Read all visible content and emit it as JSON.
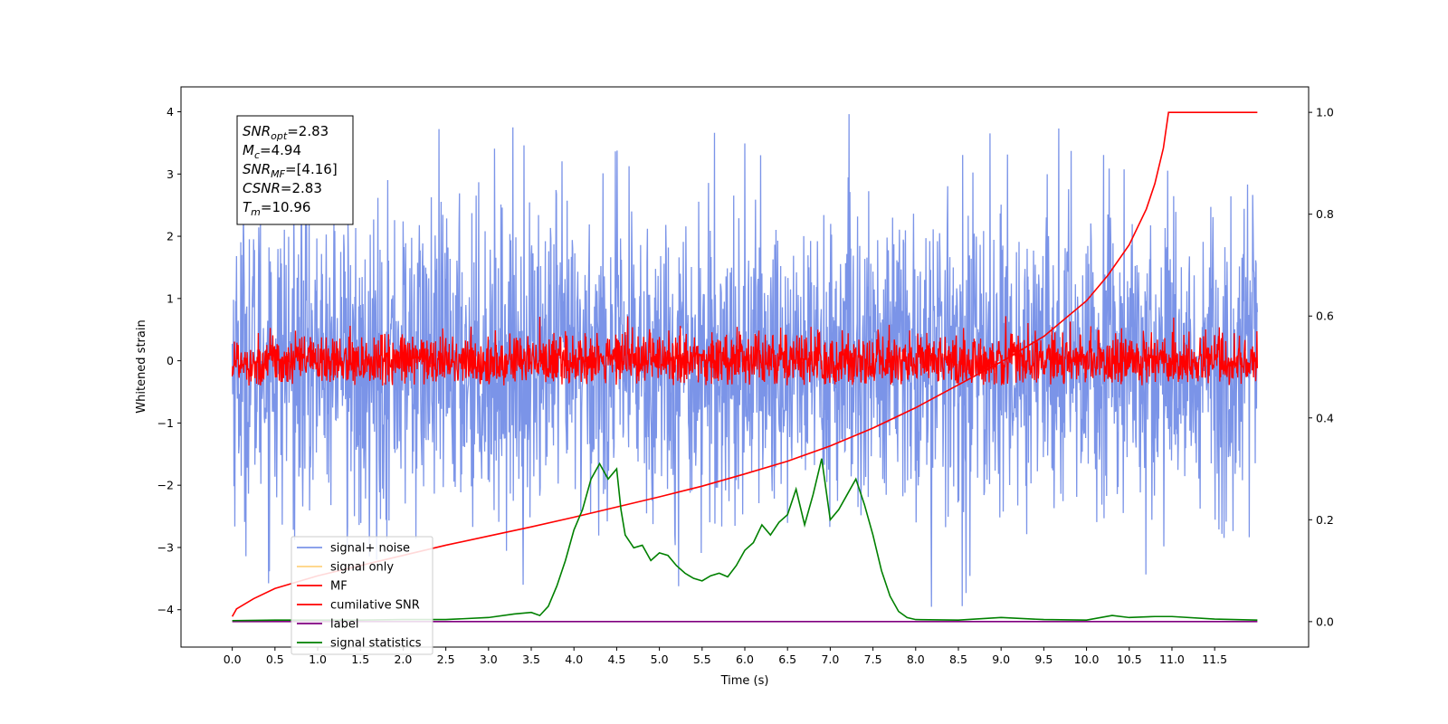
{
  "chart_data": {
    "type": "line",
    "xlabel": "Time (s)",
    "ylabel": "Whitened strain",
    "xlim": [
      -0.6,
      12.6
    ],
    "ylim": [
      -4.6,
      4.4
    ],
    "y2lim": [
      -0.05,
      1.05
    ],
    "x_ticks": [
      0.0,
      0.5,
      1.0,
      1.5,
      2.0,
      2.5,
      3.0,
      3.5,
      4.0,
      4.5,
      5.0,
      5.5,
      6.0,
      6.5,
      7.0,
      7.5,
      8.0,
      8.5,
      9.0,
      9.5,
      10.0,
      10.5,
      11.0,
      11.5
    ],
    "x_tick_labels": [
      "0.0",
      "0.5",
      "1.0",
      "1.5",
      "2.0",
      "2.5",
      "3.0",
      "3.5",
      "4.0",
      "4.5",
      "5.0",
      "5.5",
      "6.0",
      "6.5",
      "7.0",
      "7.5",
      "8.0",
      "8.5",
      "9.0",
      "9.5",
      "10.0",
      "10.5",
      "11.0",
      "11.5"
    ],
    "y_ticks": [
      -4,
      -3,
      -2,
      -1,
      0,
      1,
      2,
      3,
      4
    ],
    "y_tick_labels": [
      "−4",
      "−3",
      "−2",
      "−1",
      "0",
      "1",
      "2",
      "3",
      "4"
    ],
    "y2_ticks": [
      0.0,
      0.2,
      0.4,
      0.6,
      0.8,
      1.0
    ],
    "y2_tick_labels": [
      "0.0",
      "0.2",
      "0.4",
      "0.6",
      "0.8",
      "1.0"
    ],
    "grid": false,
    "legend_position": "bottom-left",
    "series": [
      {
        "name": "signal+ noise",
        "color": "#7b94e8",
        "axis": "left",
        "style": "noise",
        "x_range": [
          0.0,
          12.0
        ],
        "mean": 0.0,
        "amplitude_range": [
          -4.0,
          4.0
        ]
      },
      {
        "name": "signal only",
        "color": "#ffd27f",
        "axis": "left",
        "style": "hidden",
        "x": [],
        "y": []
      },
      {
        "name": "MF",
        "color": "#ff0000",
        "axis": "left",
        "style": "noise",
        "x_range": [
          0.0,
          12.0
        ],
        "mean": 0.0,
        "amplitude_range": [
          -0.4,
          1.0
        ]
      },
      {
        "name": "cumilative SNR",
        "color": "#ff0000",
        "axis": "right",
        "style": "line",
        "x": [
          0.0,
          0.05,
          0.25,
          0.5,
          1.0,
          1.5,
          2.0,
          2.5,
          3.0,
          3.5,
          4.0,
          4.5,
          5.0,
          5.5,
          6.0,
          6.5,
          7.0,
          7.5,
          8.0,
          8.5,
          9.0,
          9.5,
          10.0,
          10.25,
          10.5,
          10.7,
          10.8,
          10.9,
          10.96,
          11.0,
          11.5,
          12.0
        ],
        "y": [
          0.01,
          0.025,
          0.045,
          0.065,
          0.09,
          0.11,
          0.13,
          0.15,
          0.168,
          0.186,
          0.205,
          0.225,
          0.245,
          0.266,
          0.29,
          0.315,
          0.345,
          0.38,
          0.42,
          0.465,
          0.51,
          0.56,
          0.63,
          0.68,
          0.74,
          0.81,
          0.86,
          0.93,
          1.0,
          1.0,
          1.0,
          1.0
        ]
      },
      {
        "name": "label",
        "color": "#800080",
        "axis": "right",
        "style": "line",
        "x": [
          0.0,
          12.0
        ],
        "y": [
          0.0,
          0.0
        ]
      },
      {
        "name": "signal statistics",
        "color": "#008000",
        "axis": "right",
        "style": "line",
        "x": [
          0.0,
          0.5,
          1.0,
          1.5,
          2.0,
          2.5,
          3.0,
          3.3,
          3.5,
          3.6,
          3.7,
          3.8,
          3.9,
          4.0,
          4.1,
          4.2,
          4.3,
          4.4,
          4.5,
          4.55,
          4.6,
          4.7,
          4.8,
          4.9,
          5.0,
          5.1,
          5.2,
          5.3,
          5.4,
          5.5,
          5.6,
          5.7,
          5.8,
          5.9,
          6.0,
          6.1,
          6.2,
          6.3,
          6.4,
          6.5,
          6.6,
          6.7,
          6.8,
          6.9,
          7.0,
          7.1,
          7.2,
          7.3,
          7.4,
          7.5,
          7.6,
          7.7,
          7.8,
          7.9,
          8.0,
          8.5,
          9.0,
          9.5,
          10.0,
          10.3,
          10.5,
          10.8,
          11.0,
          11.5,
          12.0
        ],
        "y": [
          0.002,
          0.003,
          0.003,
          0.003,
          0.004,
          0.004,
          0.008,
          0.015,
          0.018,
          0.012,
          0.03,
          0.07,
          0.12,
          0.18,
          0.22,
          0.28,
          0.31,
          0.28,
          0.3,
          0.22,
          0.17,
          0.145,
          0.15,
          0.12,
          0.135,
          0.13,
          0.11,
          0.095,
          0.085,
          0.08,
          0.09,
          0.095,
          0.088,
          0.11,
          0.14,
          0.155,
          0.19,
          0.17,
          0.195,
          0.21,
          0.26,
          0.19,
          0.25,
          0.32,
          0.2,
          0.22,
          0.25,
          0.28,
          0.23,
          0.17,
          0.1,
          0.05,
          0.02,
          0.008,
          0.004,
          0.003,
          0.008,
          0.004,
          0.003,
          0.012,
          0.008,
          0.01,
          0.01,
          0.005,
          0.003
        ]
      }
    ],
    "annotation": {
      "lines": [
        {
          "sym": "SNR",
          "sub": "opt",
          "value": "=2.83"
        },
        {
          "sym": "M",
          "sub": "c",
          "value": "=4.94"
        },
        {
          "sym": "SNR",
          "sub": "MF",
          "value": "=[4.16]"
        },
        {
          "sym": "CSNR",
          "sub": "",
          "value": "=2.83"
        },
        {
          "sym": "T",
          "sub": "m",
          "value": "=10.96"
        }
      ]
    }
  }
}
